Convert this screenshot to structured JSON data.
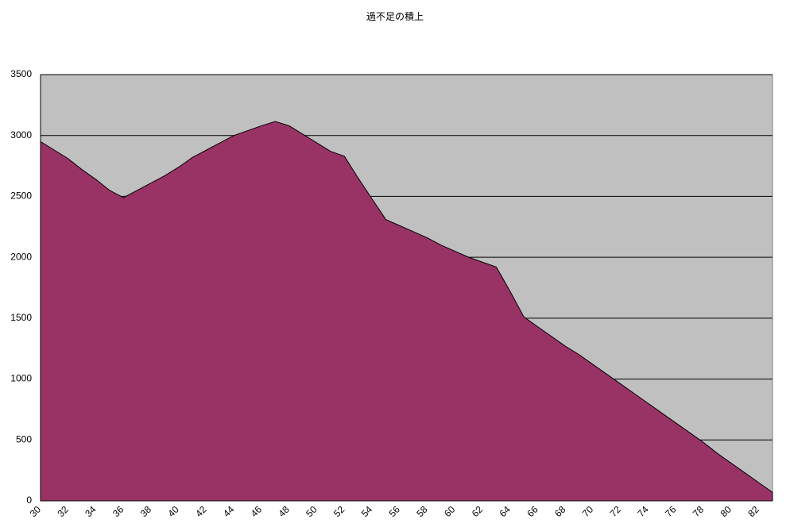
{
  "chart_data": {
    "type": "area",
    "title": "過不足の積上",
    "categories": [
      30,
      null,
      32,
      null,
      34,
      null,
      36,
      null,
      38,
      null,
      40,
      null,
      42,
      null,
      44,
      null,
      46,
      null,
      48,
      null,
      50,
      null,
      52,
      null,
      54,
      null,
      56,
      null,
      58,
      null,
      60,
      null,
      62,
      null,
      64,
      null,
      66,
      null,
      68,
      null,
      70,
      null,
      72,
      null,
      74,
      null,
      76,
      null,
      78,
      null,
      80,
      null,
      82,
      null
    ],
    "values": [
      2950,
      2880,
      2810,
      2720,
      2640,
      2550,
      2490,
      2550,
      2610,
      2670,
      2740,
      2820,
      2880,
      2940,
      3000,
      3040,
      3080,
      3115,
      3080,
      3010,
      2940,
      2870,
      2830,
      2650,
      2480,
      2310,
      2260,
      2210,
      2160,
      2100,
      2050,
      2000,
      1960,
      1920,
      1720,
      1510,
      1430,
      1350,
      1270,
      1200,
      1120,
      1040,
      960,
      880,
      800,
      720,
      640,
      560,
      480,
      390,
      310,
      230,
      150,
      70
    ],
    "color": "#993366",
    "plot_background": "#c0c0c0",
    "ylim": [
      0,
      3500
    ],
    "yticks": [
      0,
      500,
      1000,
      1500,
      2000,
      2500,
      3000,
      3500
    ],
    "grid": true
  }
}
